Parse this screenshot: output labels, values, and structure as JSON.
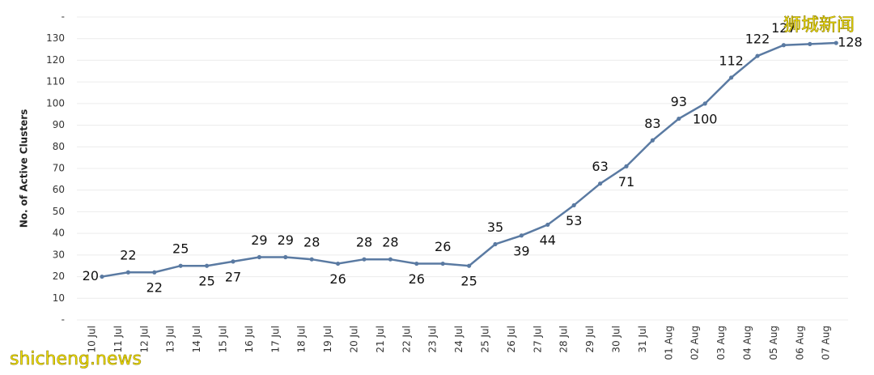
{
  "chart_data": {
    "type": "line",
    "y_axis_label": "No. of Active Clusters",
    "watermarks": [
      "狮城新闻",
      "shicheng.news"
    ],
    "categories": [
      "10 Jul",
      "11 Jul",
      "12 Jul",
      "13 Jul",
      "14 Jul",
      "15 Jul",
      "16 Jul",
      "17 Jul",
      "18 Jul",
      "19 Jul",
      "20 Jul",
      "21 Jul",
      "22 Jul",
      "23 Jul",
      "24 Jul",
      "25 Jul",
      "26 Jul",
      "27 Jul",
      "28 Jul",
      "29 Jul",
      "30 Jul",
      "31 Jul",
      "01 Aug",
      "02 Aug",
      "03 Aug",
      "04 Aug",
      "05 Aug",
      "06 Aug",
      "07 Aug"
    ],
    "series": [
      {
        "name": "Active Clusters",
        "color": "#5a7aa2",
        "values": [
          20,
          22,
          22,
          25,
          25,
          27,
          29,
          29,
          28,
          26,
          28,
          28,
          26,
          26,
          25,
          35,
          39,
          44,
          53,
          63,
          71,
          83,
          93,
          100,
          112,
          122,
          127,
          127.5,
          128
        ],
        "value_labels": [
          "20",
          "22",
          "22",
          "25",
          "25",
          "27",
          "29",
          "29",
          "28",
          "26",
          "28",
          "28",
          "26",
          "26",
          "25",
          "35",
          "39",
          "44",
          "53",
          "63",
          "71",
          "83",
          "93",
          "100",
          "112",
          "122",
          "127",
          null,
          "128"
        ]
      }
    ],
    "ylim": [
      0,
      140
    ],
    "yticks": [
      {
        "value": 0,
        "label": "-"
      },
      10,
      20,
      30,
      40,
      50,
      60,
      70,
      80,
      90,
      100,
      110,
      120,
      130,
      {
        "value": 140,
        "label": "-"
      }
    ],
    "grid": true
  }
}
